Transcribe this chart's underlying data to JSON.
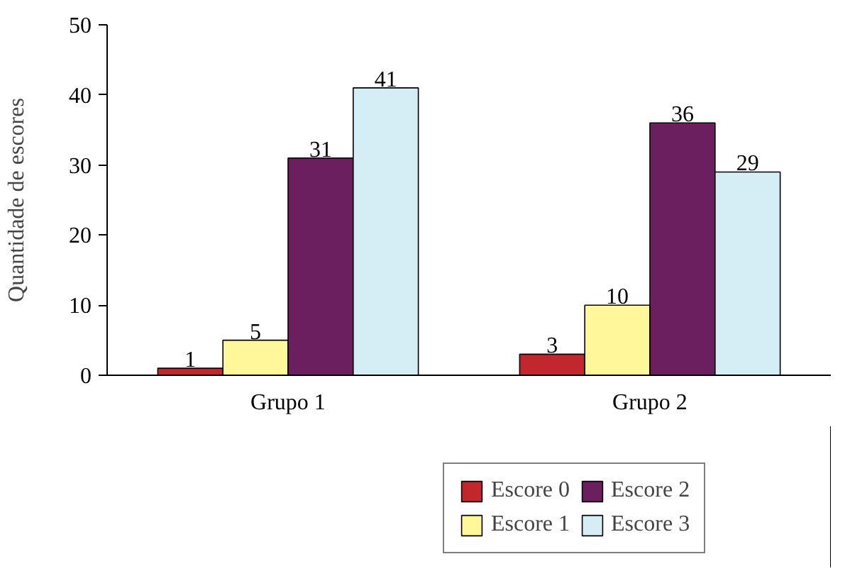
{
  "chart_data": {
    "type": "bar",
    "ylabel": "Quantidade de escores",
    "categories": [
      "Grupo 1",
      "Grupo 2"
    ],
    "series": [
      {
        "name": "Escore 0",
        "color": "#c1272d",
        "values": [
          1,
          3
        ]
      },
      {
        "name": "Escore 1",
        "color": "#fff799",
        "values": [
          5,
          10
        ]
      },
      {
        "name": "Escore 2",
        "color": "#6b1f5f",
        "values": [
          31,
          36
        ]
      },
      {
        "name": "Escore 3",
        "color": "#d5eef5",
        "values": [
          41,
          29
        ]
      }
    ],
    "ylim": [
      0,
      50
    ],
    "yticks": [
      0,
      10,
      20,
      30,
      40,
      50
    ],
    "data_labels": true,
    "legend": "bottom",
    "grid": false
  }
}
